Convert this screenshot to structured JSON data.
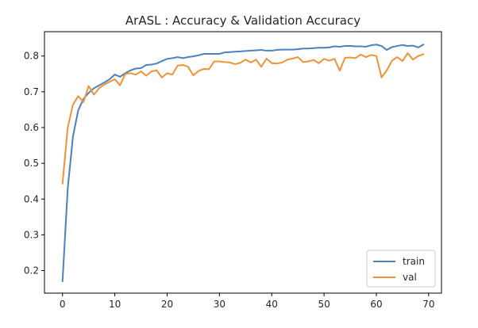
{
  "chart_data": {
    "type": "line",
    "title": "ArASL :  Accuracy  &  Validation Accuracy",
    "xlabel": "",
    "ylabel": "",
    "xlim": [
      -3.45,
      72.45
    ],
    "ylim": [
      0.137,
      0.868
    ],
    "xticks": [
      0,
      10,
      20,
      30,
      40,
      50,
      60,
      70
    ],
    "yticks": [
      0.2,
      0.3,
      0.4,
      0.5,
      0.6,
      0.7,
      0.8
    ],
    "grid": false,
    "legend_position": "bottom-right",
    "series": [
      {
        "name": "train",
        "color": "#4c81be",
        "x": [
          0,
          1,
          2,
          3,
          4,
          5,
          6,
          7,
          8,
          9,
          10,
          11,
          12,
          13,
          14,
          15,
          16,
          17,
          18,
          19,
          20,
          21,
          22,
          23,
          24,
          25,
          26,
          27,
          28,
          29,
          30,
          31,
          32,
          33,
          34,
          35,
          36,
          37,
          38,
          39,
          40,
          41,
          42,
          43,
          44,
          45,
          46,
          47,
          48,
          49,
          50,
          51,
          52,
          53,
          54,
          55,
          56,
          57,
          58,
          59,
          60,
          61,
          62,
          63,
          64,
          65,
          66,
          67,
          68,
          69
        ],
        "values": [
          0.17,
          0.43,
          0.575,
          0.648,
          0.68,
          0.697,
          0.71,
          0.718,
          0.726,
          0.735,
          0.748,
          0.742,
          0.752,
          0.76,
          0.765,
          0.766,
          0.775,
          0.776,
          0.779,
          0.786,
          0.792,
          0.794,
          0.797,
          0.794,
          0.797,
          0.799,
          0.802,
          0.806,
          0.806,
          0.806,
          0.806,
          0.81,
          0.811,
          0.812,
          0.813,
          0.814,
          0.815,
          0.816,
          0.817,
          0.815,
          0.815,
          0.817,
          0.818,
          0.818,
          0.818,
          0.819,
          0.821,
          0.821,
          0.822,
          0.823,
          0.823,
          0.824,
          0.827,
          0.826,
          0.828,
          0.828,
          0.827,
          0.827,
          0.826,
          0.83,
          0.832,
          0.828,
          0.817,
          0.825,
          0.828,
          0.831,
          0.828,
          0.829,
          0.824,
          0.832
        ]
      },
      {
        "name": "val",
        "color": "#f0923a",
        "x": [
          0,
          1,
          2,
          3,
          4,
          5,
          6,
          7,
          8,
          9,
          10,
          11,
          12,
          13,
          14,
          15,
          16,
          17,
          18,
          19,
          20,
          21,
          22,
          23,
          24,
          25,
          26,
          27,
          28,
          29,
          30,
          31,
          32,
          33,
          34,
          35,
          36,
          37,
          38,
          39,
          40,
          41,
          42,
          43,
          44,
          45,
          46,
          47,
          48,
          49,
          50,
          51,
          52,
          53,
          54,
          55,
          56,
          57,
          58,
          59,
          60,
          61,
          62,
          63,
          64,
          65,
          66,
          67,
          68,
          69
        ],
        "values": [
          0.443,
          0.6,
          0.664,
          0.688,
          0.671,
          0.716,
          0.692,
          0.71,
          0.72,
          0.728,
          0.735,
          0.718,
          0.75,
          0.752,
          0.748,
          0.757,
          0.745,
          0.757,
          0.76,
          0.74,
          0.752,
          0.748,
          0.773,
          0.775,
          0.77,
          0.746,
          0.758,
          0.764,
          0.763,
          0.785,
          0.785,
          0.783,
          0.782,
          0.777,
          0.781,
          0.79,
          0.782,
          0.79,
          0.77,
          0.793,
          0.78,
          0.779,
          0.782,
          0.79,
          0.793,
          0.797,
          0.783,
          0.785,
          0.789,
          0.78,
          0.792,
          0.787,
          0.792,
          0.759,
          0.795,
          0.796,
          0.794,
          0.804,
          0.797,
          0.803,
          0.8,
          0.74,
          0.76,
          0.787,
          0.797,
          0.786,
          0.808,
          0.79,
          0.8,
          0.805
        ]
      }
    ]
  }
}
